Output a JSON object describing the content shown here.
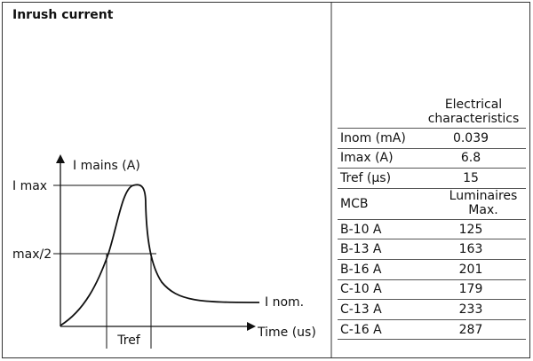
{
  "title": "Inrush current",
  "diagram": {
    "y_axis_label": "I mains (A)",
    "x_axis_label": "Time (us)",
    "i_max_label": "I max",
    "half_label": "max/2",
    "i_nom_label": "I nom.",
    "tref_label": "Tref"
  },
  "table": {
    "header": "Electrical characteristics",
    "rows": [
      [
        "Inom (mA)",
        "0.039"
      ],
      [
        "Imax (A)",
        "6.8"
      ],
      [
        "Tref (µs)",
        "15"
      ]
    ],
    "mcb_header": [
      "MCB",
      "Luminaires Max."
    ],
    "mcb_rows": [
      [
        "B-10 A",
        "125"
      ],
      [
        "B-13 A",
        "163"
      ],
      [
        "B-16 A",
        "201"
      ],
      [
        "C-10 A",
        "179"
      ],
      [
        "C-13 A",
        "233"
      ],
      [
        "C-16 A",
        "287"
      ]
    ]
  }
}
